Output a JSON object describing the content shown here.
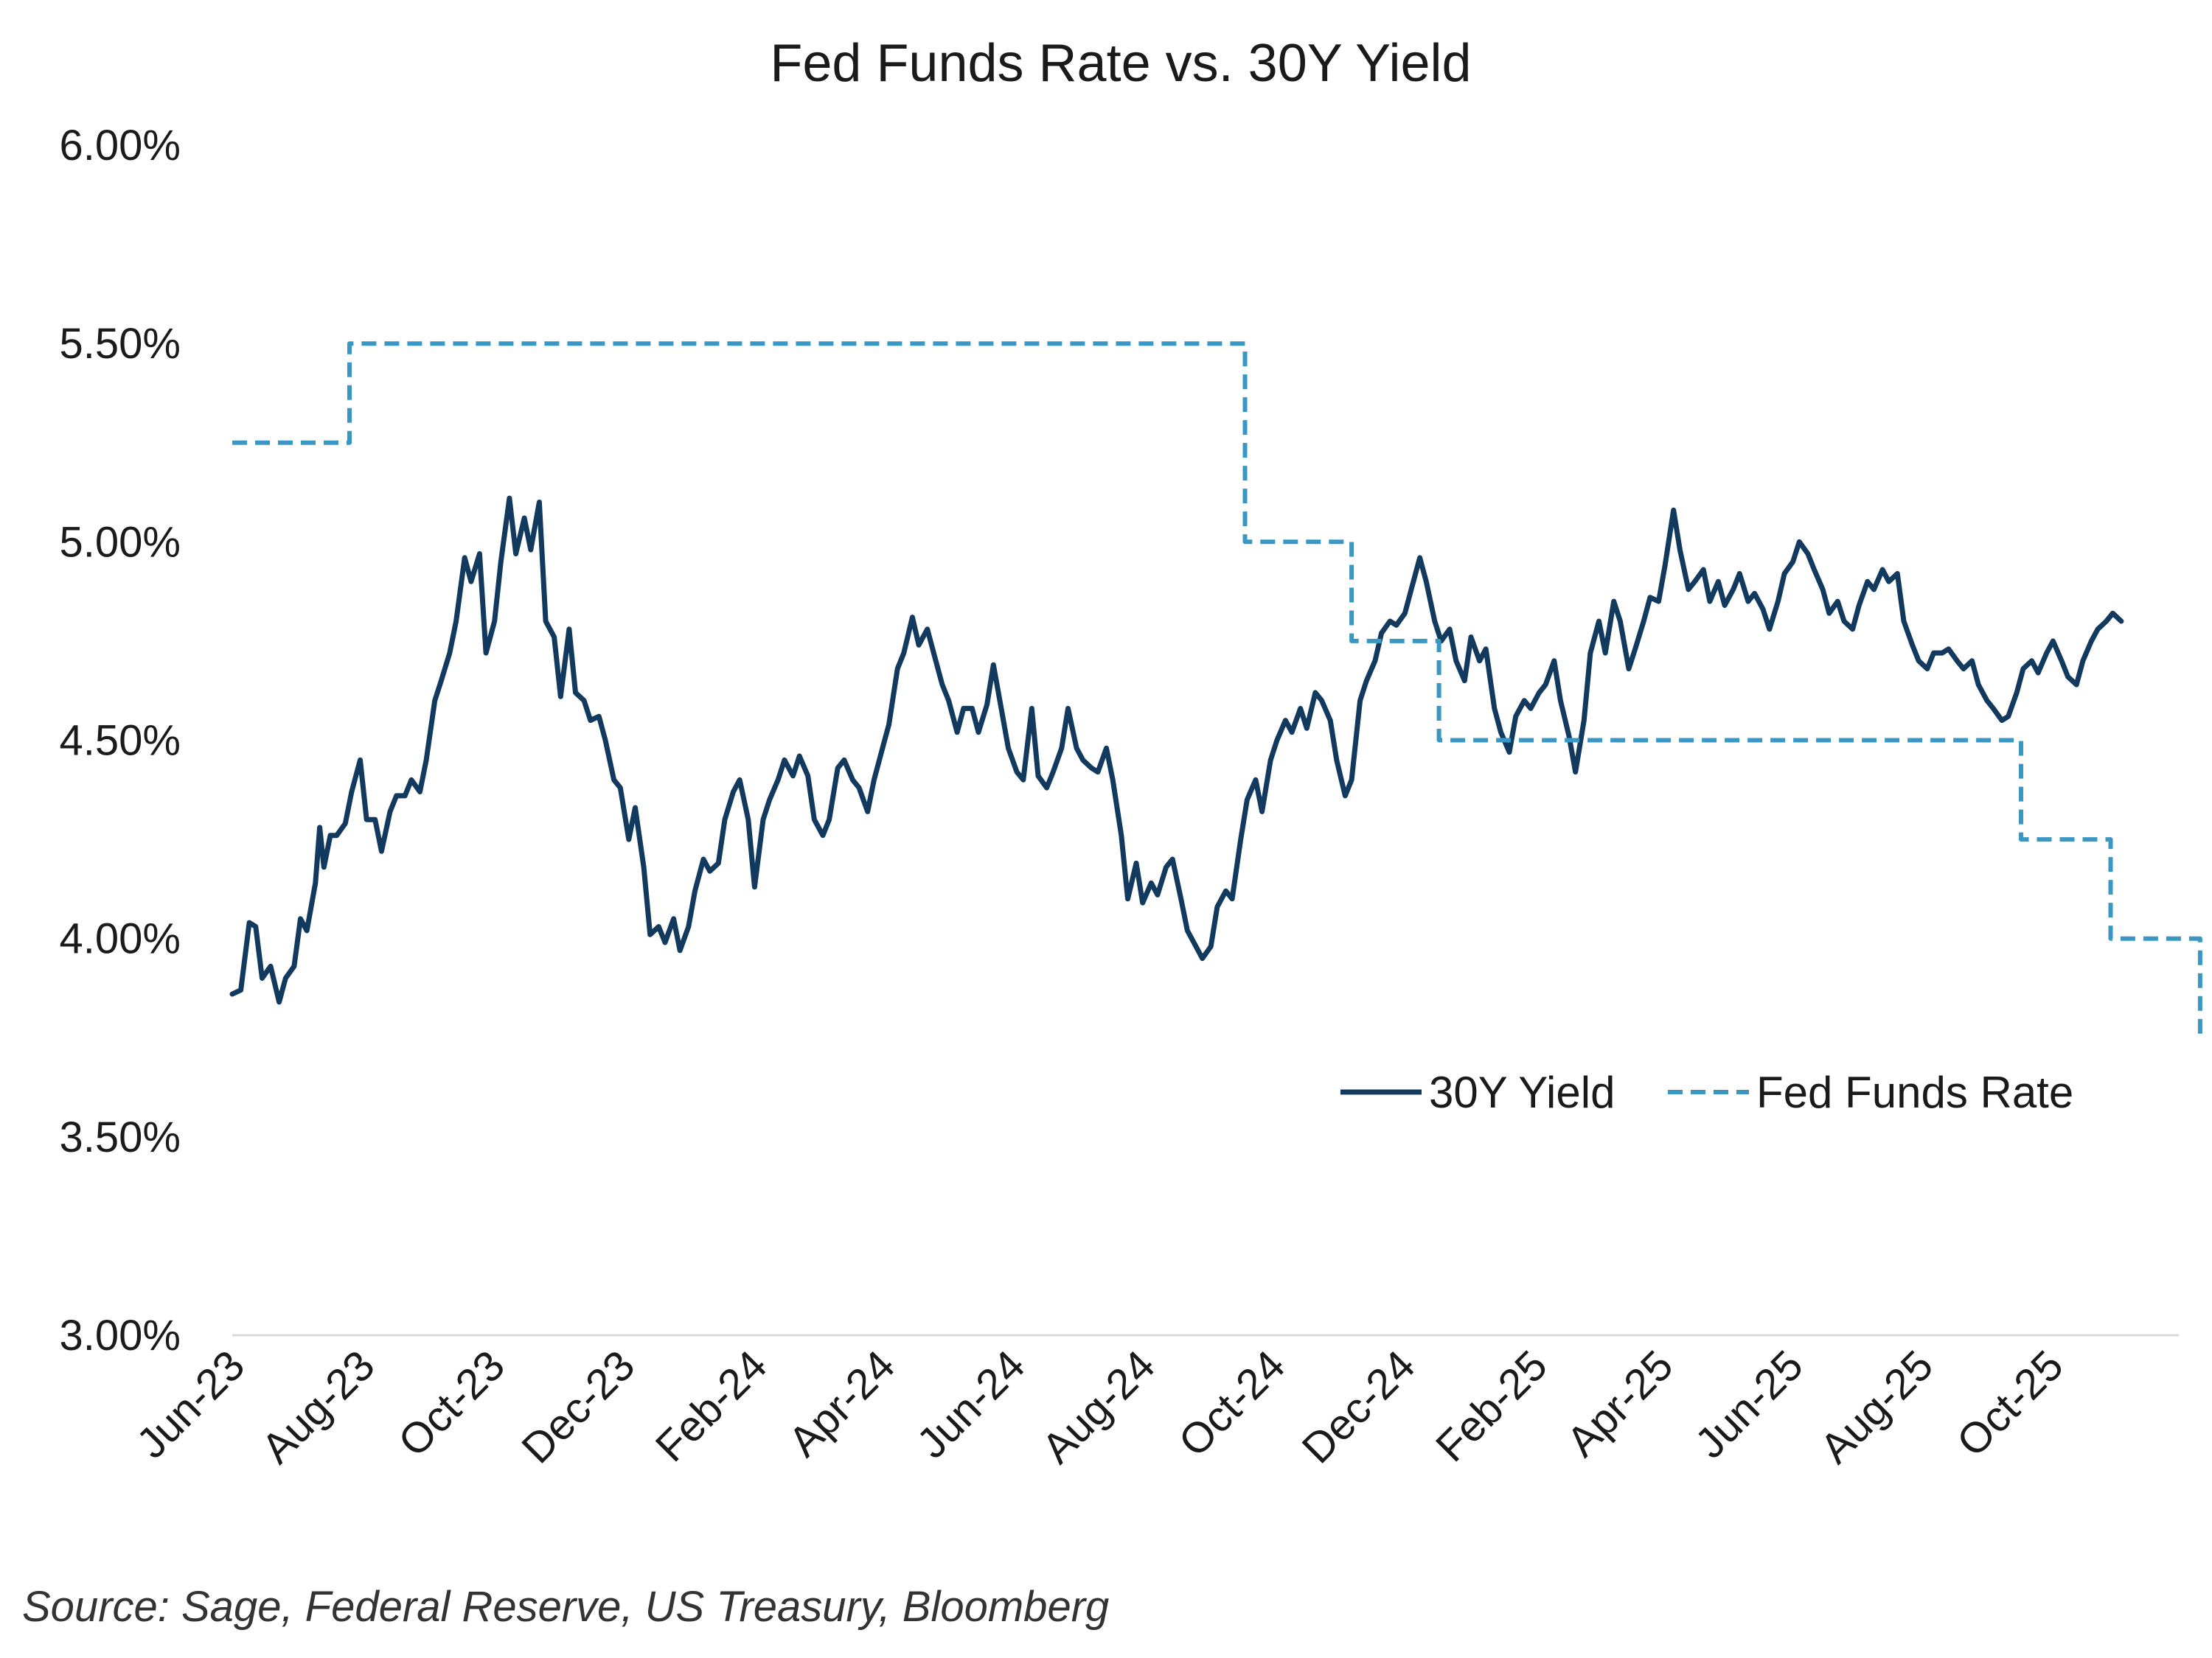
{
  "chart_data": {
    "type": "line",
    "title": "Fed Funds Rate vs. 30Y Yield",
    "xlabel": "",
    "ylabel": "",
    "x_range": [
      "2023-06-01",
      "2025-11-30"
    ],
    "ylim": [
      3.0,
      6.0
    ],
    "y_ticks": [
      "3.00%",
      "3.50%",
      "4.00%",
      "4.50%",
      "5.00%",
      "5.50%",
      "6.00%"
    ],
    "x_tick_dates": [
      "2023-06-01",
      "2023-08-01",
      "2023-10-01",
      "2023-12-01",
      "2024-02-01",
      "2024-04-01",
      "2024-06-01",
      "2024-08-01",
      "2024-10-01",
      "2024-12-01",
      "2025-02-01",
      "2025-04-01",
      "2025-06-01",
      "2025-08-01",
      "2025-10-01"
    ],
    "x_tick_labels": [
      "Jun-23",
      "Aug-23",
      "Oct-23",
      "Dec-23",
      "Feb-24",
      "Apr-24",
      "Jun-24",
      "Aug-24",
      "Oct-24",
      "Dec-24",
      "Feb-25",
      "Apr-25",
      "Jun-25",
      "Aug-25",
      "Oct-25"
    ],
    "grid": false,
    "legend_position": "lower-right",
    "series": [
      {
        "name": "30Y Yield",
        "style": "solid",
        "color": "#12395e",
        "points": [
          [
            "2023-06-01",
            3.86
          ],
          [
            "2023-06-05",
            3.87
          ],
          [
            "2023-06-09",
            4.04
          ],
          [
            "2023-06-12",
            4.03
          ],
          [
            "2023-06-15",
            3.9
          ],
          [
            "2023-06-19",
            3.93
          ],
          [
            "2023-06-23",
            3.84
          ],
          [
            "2023-06-26",
            3.9
          ],
          [
            "2023-06-30",
            3.93
          ],
          [
            "2023-07-03",
            4.05
          ],
          [
            "2023-07-06",
            4.02
          ],
          [
            "2023-07-10",
            4.14
          ],
          [
            "2023-07-12",
            4.28
          ],
          [
            "2023-07-14",
            4.18
          ],
          [
            "2023-07-17",
            4.26
          ],
          [
            "2023-07-20",
            4.26
          ],
          [
            "2023-07-24",
            4.29
          ],
          [
            "2023-07-27",
            4.37
          ],
          [
            "2023-07-31",
            4.45
          ],
          [
            "2023-08-03",
            4.3
          ],
          [
            "2023-08-07",
            4.3
          ],
          [
            "2023-08-10",
            4.22
          ],
          [
            "2023-08-14",
            4.32
          ],
          [
            "2023-08-17",
            4.36
          ],
          [
            "2023-08-21",
            4.36
          ],
          [
            "2023-08-24",
            4.4
          ],
          [
            "2023-08-28",
            4.37
          ],
          [
            "2023-08-31",
            4.45
          ],
          [
            "2023-09-04",
            4.6
          ],
          [
            "2023-09-07",
            4.65
          ],
          [
            "2023-09-11",
            4.72
          ],
          [
            "2023-09-14",
            4.8
          ],
          [
            "2023-09-18",
            4.96
          ],
          [
            "2023-09-21",
            4.9
          ],
          [
            "2023-09-25",
            4.97
          ],
          [
            "2023-09-28",
            4.72
          ],
          [
            "2023-10-02",
            4.8
          ],
          [
            "2023-10-05",
            4.95
          ],
          [
            "2023-10-09",
            5.11
          ],
          [
            "2023-10-12",
            4.97
          ],
          [
            "2023-10-16",
            5.06
          ],
          [
            "2023-10-19",
            4.98
          ],
          [
            "2023-10-23",
            5.1
          ],
          [
            "2023-10-26",
            4.8
          ],
          [
            "2023-10-30",
            4.76
          ],
          [
            "2023-11-02",
            4.61
          ],
          [
            "2023-11-06",
            4.78
          ],
          [
            "2023-11-09",
            4.62
          ],
          [
            "2023-11-13",
            4.6
          ],
          [
            "2023-11-16",
            4.55
          ],
          [
            "2023-11-20",
            4.56
          ],
          [
            "2023-11-23",
            4.5
          ],
          [
            "2023-11-27",
            4.4
          ],
          [
            "2023-11-30",
            4.38
          ],
          [
            "2023-12-04",
            4.25
          ],
          [
            "2023-12-07",
            4.33
          ],
          [
            "2023-12-11",
            4.18
          ],
          [
            "2023-12-14",
            4.01
          ],
          [
            "2023-12-18",
            4.03
          ],
          [
            "2023-12-21",
            3.99
          ],
          [
            "2023-12-25",
            4.05
          ],
          [
            "2023-12-28",
            3.97
          ],
          [
            "2024-01-01",
            4.03
          ],
          [
            "2024-01-04",
            4.12
          ],
          [
            "2024-01-08",
            4.2
          ],
          [
            "2024-01-11",
            4.17
          ],
          [
            "2024-01-15",
            4.19
          ],
          [
            "2024-01-18",
            4.3
          ],
          [
            "2024-01-22",
            4.37
          ],
          [
            "2024-01-25",
            4.4
          ],
          [
            "2024-01-29",
            4.3
          ],
          [
            "2024-02-01",
            4.13
          ],
          [
            "2024-02-05",
            4.3
          ],
          [
            "2024-02-08",
            4.35
          ],
          [
            "2024-02-12",
            4.4
          ],
          [
            "2024-02-15",
            4.45
          ],
          [
            "2024-02-19",
            4.41
          ],
          [
            "2024-02-22",
            4.46
          ],
          [
            "2024-02-26",
            4.41
          ],
          [
            "2024-02-29",
            4.3
          ],
          [
            "2024-03-04",
            4.26
          ],
          [
            "2024-03-07",
            4.3
          ],
          [
            "2024-03-11",
            4.43
          ],
          [
            "2024-03-14",
            4.45
          ],
          [
            "2024-03-18",
            4.4
          ],
          [
            "2024-03-21",
            4.38
          ],
          [
            "2024-03-25",
            4.32
          ],
          [
            "2024-03-28",
            4.4
          ],
          [
            "2024-04-01",
            4.48
          ],
          [
            "2024-04-04",
            4.54
          ],
          [
            "2024-04-08",
            4.68
          ],
          [
            "2024-04-11",
            4.72
          ],
          [
            "2024-04-15",
            4.81
          ],
          [
            "2024-04-18",
            4.74
          ],
          [
            "2024-04-22",
            4.78
          ],
          [
            "2024-04-25",
            4.72
          ],
          [
            "2024-04-29",
            4.64
          ],
          [
            "2024-05-02",
            4.6
          ],
          [
            "2024-05-06",
            4.52
          ],
          [
            "2024-05-09",
            4.58
          ],
          [
            "2024-05-13",
            4.58
          ],
          [
            "2024-05-16",
            4.52
          ],
          [
            "2024-05-20",
            4.59
          ],
          [
            "2024-05-23",
            4.69
          ],
          [
            "2024-05-27",
            4.57
          ],
          [
            "2024-05-30",
            4.48
          ],
          [
            "2024-06-03",
            4.42
          ],
          [
            "2024-06-06",
            4.4
          ],
          [
            "2024-06-10",
            4.58
          ],
          [
            "2024-06-13",
            4.41
          ],
          [
            "2024-06-17",
            4.38
          ],
          [
            "2024-06-20",
            4.42
          ],
          [
            "2024-06-24",
            4.48
          ],
          [
            "2024-06-27",
            4.58
          ],
          [
            "2024-07-01",
            4.48
          ],
          [
            "2024-07-04",
            4.45
          ],
          [
            "2024-07-08",
            4.43
          ],
          [
            "2024-07-11",
            4.42
          ],
          [
            "2024-07-15",
            4.48
          ],
          [
            "2024-07-18",
            4.4
          ],
          [
            "2024-07-22",
            4.26
          ],
          [
            "2024-07-25",
            4.1
          ],
          [
            "2024-07-29",
            4.19
          ],
          [
            "2024-08-01",
            4.09
          ],
          [
            "2024-08-05",
            4.14
          ],
          [
            "2024-08-08",
            4.11
          ],
          [
            "2024-08-12",
            4.18
          ],
          [
            "2024-08-15",
            4.2
          ],
          [
            "2024-08-19",
            4.1
          ],
          [
            "2024-08-22",
            4.02
          ],
          [
            "2024-08-26",
            3.98
          ],
          [
            "2024-08-29",
            3.95
          ],
          [
            "2024-09-02",
            3.98
          ],
          [
            "2024-09-05",
            4.08
          ],
          [
            "2024-09-09",
            4.12
          ],
          [
            "2024-09-12",
            4.1
          ],
          [
            "2024-09-16",
            4.25
          ],
          [
            "2024-09-19",
            4.35
          ],
          [
            "2024-09-23",
            4.4
          ],
          [
            "2024-09-26",
            4.32
          ],
          [
            "2024-09-30",
            4.45
          ],
          [
            "2024-10-03",
            4.5
          ],
          [
            "2024-10-07",
            4.55
          ],
          [
            "2024-10-10",
            4.52
          ],
          [
            "2024-10-14",
            4.58
          ],
          [
            "2024-10-17",
            4.53
          ],
          [
            "2024-10-21",
            4.62
          ],
          [
            "2024-10-24",
            4.6
          ],
          [
            "2024-10-28",
            4.55
          ],
          [
            "2024-10-31",
            4.45
          ],
          [
            "2024-11-04",
            4.36
          ],
          [
            "2024-11-07",
            4.4
          ],
          [
            "2024-11-11",
            4.6
          ],
          [
            "2024-11-14",
            4.65
          ],
          [
            "2024-11-18",
            4.7
          ],
          [
            "2024-11-21",
            4.77
          ],
          [
            "2024-11-25",
            4.8
          ],
          [
            "2024-11-28",
            4.79
          ],
          [
            "2024-12-02",
            4.82
          ],
          [
            "2024-12-05",
            4.88
          ],
          [
            "2024-12-09",
            4.96
          ],
          [
            "2024-12-12",
            4.9
          ],
          [
            "2024-12-16",
            4.8
          ],
          [
            "2024-12-19",
            4.75
          ],
          [
            "2024-12-23",
            4.78
          ],
          [
            "2024-12-26",
            4.7
          ],
          [
            "2024-12-30",
            4.65
          ],
          [
            "2025-01-02",
            4.76
          ],
          [
            "2025-01-06",
            4.7
          ],
          [
            "2025-01-09",
            4.73
          ],
          [
            "2025-01-13",
            4.58
          ],
          [
            "2025-01-16",
            4.52
          ],
          [
            "2025-01-20",
            4.47
          ],
          [
            "2025-01-23",
            4.56
          ],
          [
            "2025-01-27",
            4.6
          ],
          [
            "2025-01-30",
            4.58
          ],
          [
            "2025-02-03",
            4.62
          ],
          [
            "2025-02-06",
            4.64
          ],
          [
            "2025-02-10",
            4.7
          ],
          [
            "2025-02-13",
            4.6
          ],
          [
            "2025-02-17",
            4.51
          ],
          [
            "2025-02-20",
            4.42
          ],
          [
            "2025-02-24",
            4.55
          ],
          [
            "2025-02-27",
            4.72
          ],
          [
            "2025-03-03",
            4.8
          ],
          [
            "2025-03-06",
            4.72
          ],
          [
            "2025-03-10",
            4.85
          ],
          [
            "2025-03-13",
            4.8
          ],
          [
            "2025-03-17",
            4.68
          ],
          [
            "2025-03-20",
            4.73
          ],
          [
            "2025-03-24",
            4.8
          ],
          [
            "2025-03-27",
            4.86
          ],
          [
            "2025-03-31",
            4.85
          ],
          [
            "2025-04-03",
            4.94
          ],
          [
            "2025-04-07",
            5.08
          ],
          [
            "2025-04-10",
            4.98
          ],
          [
            "2025-04-14",
            4.88
          ],
          [
            "2025-04-17",
            4.9
          ],
          [
            "2025-04-21",
            4.93
          ],
          [
            "2025-04-24",
            4.85
          ],
          [
            "2025-04-28",
            4.9
          ],
          [
            "2025-05-01",
            4.84
          ],
          [
            "2025-05-05",
            4.88
          ],
          [
            "2025-05-08",
            4.92
          ],
          [
            "2025-05-12",
            4.85
          ],
          [
            "2025-05-15",
            4.87
          ],
          [
            "2025-05-19",
            4.83
          ],
          [
            "2025-05-22",
            4.78
          ],
          [
            "2025-05-26",
            4.85
          ],
          [
            "2025-05-29",
            4.92
          ],
          [
            "2025-06-02",
            4.95
          ],
          [
            "2025-06-05",
            5.0
          ],
          [
            "2025-06-09",
            4.97
          ],
          [
            "2025-06-12",
            4.93
          ],
          [
            "2025-06-16",
            4.88
          ],
          [
            "2025-06-19",
            4.82
          ],
          [
            "2025-06-23",
            4.85
          ],
          [
            "2025-06-26",
            4.8
          ],
          [
            "2025-06-30",
            4.78
          ],
          [
            "2025-07-03",
            4.84
          ],
          [
            "2025-07-07",
            4.9
          ],
          [
            "2025-07-10",
            4.88
          ],
          [
            "2025-07-14",
            4.93
          ],
          [
            "2025-07-17",
            4.9
          ],
          [
            "2025-07-21",
            4.92
          ],
          [
            "2025-07-24",
            4.8
          ],
          [
            "2025-07-28",
            4.74
          ],
          [
            "2025-07-31",
            4.7
          ],
          [
            "2025-08-04",
            4.68
          ],
          [
            "2025-08-07",
            4.72
          ],
          [
            "2025-08-11",
            4.72
          ],
          [
            "2025-08-14",
            4.73
          ],
          [
            "2025-08-18",
            4.7
          ],
          [
            "2025-08-21",
            4.68
          ],
          [
            "2025-08-25",
            4.7
          ],
          [
            "2025-08-28",
            4.64
          ],
          [
            "2025-09-01",
            4.6
          ],
          [
            "2025-09-04",
            4.58
          ],
          [
            "2025-09-08",
            4.55
          ],
          [
            "2025-09-11",
            4.56
          ],
          [
            "2025-09-15",
            4.62
          ],
          [
            "2025-09-18",
            4.68
          ],
          [
            "2025-09-22",
            4.7
          ],
          [
            "2025-09-25",
            4.67
          ],
          [
            "2025-09-29",
            4.72
          ],
          [
            "2025-10-02",
            4.75
          ],
          [
            "2025-10-06",
            4.7
          ],
          [
            "2025-10-09",
            4.66
          ],
          [
            "2025-10-13",
            4.64
          ],
          [
            "2025-10-16",
            4.7
          ],
          [
            "2025-10-20",
            4.75
          ],
          [
            "2025-10-23",
            4.78
          ],
          [
            "2025-10-27",
            4.8
          ],
          [
            "2025-10-30",
            4.82
          ],
          [
            "2025-11-03",
            4.8
          ]
        ]
      },
      {
        "name": "Fed Funds Rate",
        "style": "dashed",
        "color": "#3a97c4",
        "points": [
          [
            "2023-06-01",
            5.25
          ],
          [
            "2023-07-26",
            5.25
          ],
          [
            "2023-07-26",
            5.5
          ],
          [
            "2024-09-18",
            5.5
          ],
          [
            "2024-09-18",
            5.0
          ],
          [
            "2024-11-07",
            5.0
          ],
          [
            "2024-11-07",
            4.75
          ],
          [
            "2024-12-18",
            4.75
          ],
          [
            "2024-12-18",
            4.5
          ],
          [
            "2025-09-17",
            4.5
          ],
          [
            "2025-09-17",
            4.25
          ],
          [
            "2025-10-29",
            4.25
          ],
          [
            "2025-10-29",
            4.0
          ],
          [
            "2025-12-10",
            4.0
          ],
          [
            "2025-12-10",
            3.75
          ]
        ]
      }
    ],
    "source": "Source: Sage, Federal Reserve, US Treasury, Bloomberg"
  }
}
